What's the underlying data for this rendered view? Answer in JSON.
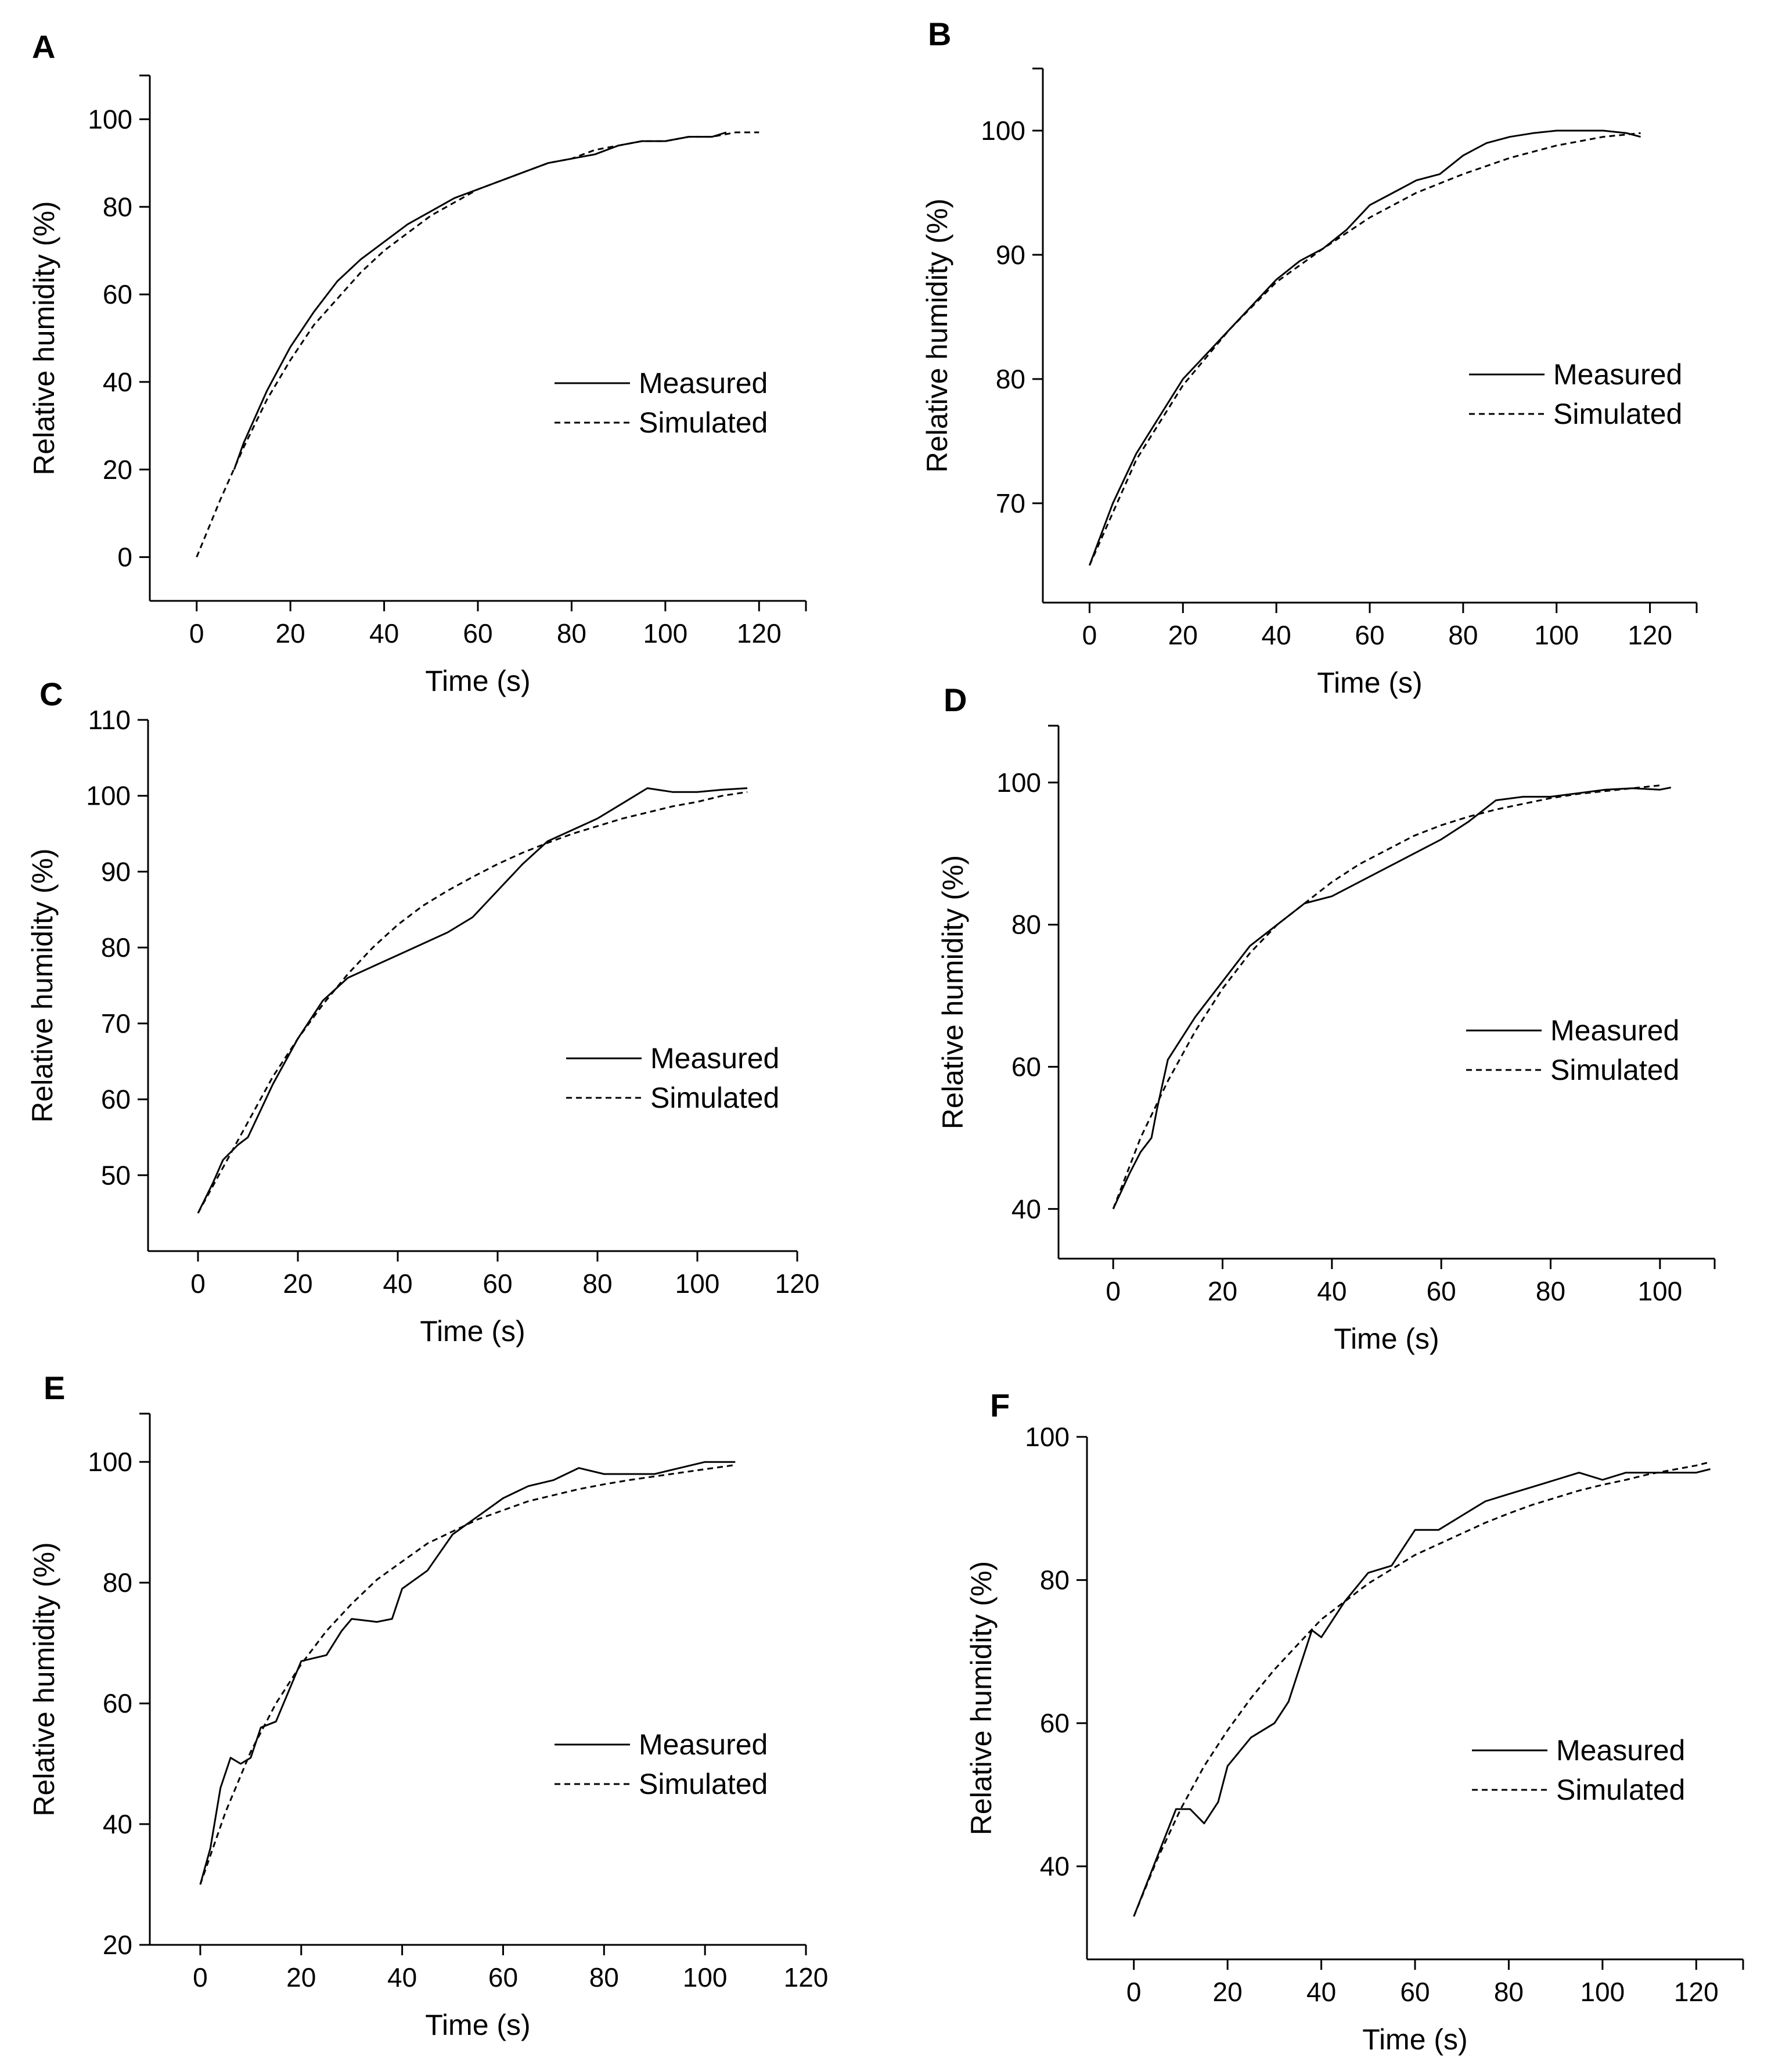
{
  "chart_data": [
    {
      "panel": "A",
      "type": "line",
      "xlabel": "Time (s)",
      "ylabel": "Relative humidity (%)",
      "xlim": [
        -10,
        130
      ],
      "ylim": [
        -10,
        110
      ],
      "xticks": [
        0,
        20,
        40,
        60,
        80,
        100,
        120
      ],
      "yticks": [
        0,
        20,
        40,
        60,
        80,
        100
      ],
      "series": [
        {
          "name": "Measured",
          "style": "solid",
          "x": [
            8,
            10,
            15,
            20,
            25,
            30,
            35,
            40,
            45,
            50,
            55,
            60,
            65,
            70,
            75,
            80,
            85,
            90,
            95,
            100,
            105,
            110,
            113
          ],
          "y": [
            20,
            26,
            38,
            48,
            56,
            63,
            68,
            72,
            76,
            79,
            82,
            84,
            86,
            88,
            90,
            91,
            92,
            94,
            95,
            95,
            96,
            96,
            97
          ]
        },
        {
          "name": "Simulated",
          "style": "dashed",
          "x": [
            0,
            5,
            10,
            15,
            20,
            25,
            30,
            35,
            40,
            45,
            50,
            55,
            60,
            65,
            70,
            75,
            80,
            85,
            90,
            95,
            100,
            105,
            110,
            115,
            120
          ],
          "y": [
            0,
            13,
            25,
            36,
            45,
            53,
            59,
            65,
            70,
            74,
            78,
            81,
            84,
            86,
            88,
            90,
            91,
            93,
            94,
            95,
            95,
            96,
            96,
            97,
            97
          ]
        }
      ]
    },
    {
      "panel": "B",
      "type": "line",
      "xlabel": "Time (s)",
      "ylabel": "Relative humidity (%)",
      "xlim": [
        -10,
        130
      ],
      "ylim": [
        62,
        105
      ],
      "xticks": [
        0,
        20,
        40,
        60,
        80,
        100,
        120
      ],
      "yticks": [
        70,
        80,
        90,
        100
      ],
      "series": [
        {
          "name": "Measured",
          "style": "solid",
          "x": [
            0,
            5,
            10,
            15,
            20,
            25,
            30,
            35,
            40,
            45,
            50,
            55,
            60,
            65,
            70,
            75,
            80,
            85,
            90,
            95,
            100,
            105,
            110,
            115,
            118
          ],
          "y": [
            65,
            70,
            74,
            77,
            80,
            82,
            84,
            86,
            88,
            89.5,
            90.5,
            92,
            94,
            95,
            96,
            96.5,
            98,
            99,
            99.5,
            99.8,
            100,
            100,
            100,
            99.8,
            99.5
          ]
        },
        {
          "name": "Simulated",
          "style": "dashed",
          "x": [
            0,
            10,
            20,
            30,
            40,
            50,
            60,
            70,
            80,
            90,
            100,
            110,
            118
          ],
          "y": [
            65,
            73.5,
            79.5,
            84,
            87.8,
            90.5,
            93,
            95,
            96.5,
            97.8,
            98.8,
            99.5,
            99.8
          ]
        }
      ]
    },
    {
      "panel": "C",
      "type": "line",
      "xlabel": "Time (s)",
      "ylabel": "Relative humidity (%)",
      "xlim": [
        -10,
        120
      ],
      "ylim": [
        40,
        110
      ],
      "xticks": [
        0,
        20,
        40,
        60,
        80,
        100,
        120
      ],
      "yticks": [
        50,
        60,
        70,
        80,
        90,
        100,
        110
      ],
      "series": [
        {
          "name": "Measured",
          "style": "solid",
          "x": [
            0,
            3,
            5,
            8,
            10,
            15,
            20,
            25,
            30,
            35,
            40,
            45,
            50,
            55,
            60,
            65,
            70,
            75,
            80,
            85,
            90,
            95,
            100,
            105,
            110
          ],
          "y": [
            45,
            49,
            52,
            54,
            55,
            62,
            68,
            73,
            76,
            77.5,
            79,
            80.5,
            82,
            84,
            87.5,
            91,
            94,
            95.5,
            97,
            99,
            101,
            100.5,
            100.5,
            100.8,
            101
          ]
        },
        {
          "name": "Simulated",
          "style": "dashed",
          "x": [
            0,
            5,
            10,
            15,
            20,
            25,
            30,
            35,
            40,
            45,
            50,
            55,
            60,
            65,
            70,
            75,
            80,
            85,
            90,
            95,
            100,
            105,
            110
          ],
          "y": [
            45,
            51,
            57,
            63,
            68,
            72.5,
            76.5,
            80,
            83,
            85.5,
            87.5,
            89.3,
            91,
            92.5,
            93.8,
            95,
            96,
            97,
            97.8,
            98.6,
            99.2,
            100,
            100.5
          ]
        }
      ]
    },
    {
      "panel": "D",
      "type": "line",
      "xlabel": "Time (s)",
      "ylabel": "Relative humidity (%)",
      "xlim": [
        -10,
        110
      ],
      "ylim": [
        33,
        108
      ],
      "xticks": [
        0,
        20,
        40,
        60,
        80,
        100
      ],
      "yticks": [
        40,
        60,
        80,
        100
      ],
      "series": [
        {
          "name": "Measured",
          "style": "solid",
          "x": [
            0,
            3,
            5,
            7,
            8,
            10,
            15,
            20,
            25,
            30,
            35,
            40,
            45,
            50,
            55,
            60,
            65,
            70,
            75,
            80,
            85,
            90,
            95,
            100,
            102
          ],
          "y": [
            40,
            45,
            48,
            50,
            54,
            61,
            67,
            72,
            77,
            80,
            83,
            84,
            86,
            88,
            90,
            92,
            94.5,
            97.5,
            98,
            98,
            98.5,
            99,
            99.2,
            99,
            99.3
          ]
        },
        {
          "name": "Simulated",
          "style": "dashed",
          "x": [
            0,
            5,
            10,
            15,
            20,
            25,
            30,
            35,
            40,
            45,
            50,
            55,
            60,
            65,
            70,
            75,
            80,
            85,
            90,
            95,
            100
          ],
          "y": [
            40,
            50,
            58,
            65,
            71,
            76,
            80,
            83,
            86,
            88.5,
            90.5,
            92.5,
            94,
            95.2,
            96.2,
            97,
            97.8,
            98.4,
            98.8,
            99.2,
            99.6
          ]
        }
      ]
    },
    {
      "panel": "E",
      "type": "line",
      "xlabel": "Time (s)",
      "ylabel": "Relative humidity (%)",
      "xlim": [
        -10,
        120
      ],
      "ylim": [
        20,
        108
      ],
      "xticks": [
        0,
        20,
        40,
        60,
        80,
        100,
        120
      ],
      "yticks": [
        20,
        40,
        60,
        80,
        100
      ],
      "series": [
        {
          "name": "Measured",
          "style": "solid",
          "x": [
            0,
            2,
            4,
            6,
            8,
            10,
            12,
            15,
            18,
            20,
            25,
            28,
            30,
            35,
            38,
            40,
            45,
            50,
            55,
            60,
            65,
            70,
            75,
            80,
            85,
            90,
            95,
            100,
            106
          ],
          "y": [
            30,
            36,
            46,
            51,
            50,
            51,
            56,
            57,
            63,
            67,
            68,
            72,
            74,
            73.5,
            74,
            79,
            82,
            88,
            91,
            94,
            96,
            97,
            99,
            98,
            98,
            98,
            99,
            100,
            100
          ]
        },
        {
          "name": "Simulated",
          "style": "dashed",
          "x": [
            0,
            5,
            10,
            15,
            20,
            25,
            30,
            35,
            40,
            45,
            50,
            55,
            60,
            65,
            70,
            75,
            80,
            85,
            90,
            95,
            100,
            106
          ],
          "y": [
            30,
            42,
            52,
            60,
            66.5,
            72,
            76.5,
            80.5,
            83.5,
            86.5,
            88.5,
            90.5,
            92,
            93.5,
            94.5,
            95.5,
            96.3,
            97,
            97.6,
            98.2,
            98.8,
            99.5
          ]
        }
      ]
    },
    {
      "panel": "F",
      "type": "line",
      "xlabel": "Time (s)",
      "ylabel": "Relative humidity (%)",
      "xlim": [
        -10,
        130
      ],
      "ylim": [
        27,
        100
      ],
      "xticks": [
        0,
        20,
        40,
        60,
        80,
        100,
        120
      ],
      "yticks": [
        40,
        60,
        80,
        100
      ],
      "series": [
        {
          "name": "Measured",
          "style": "solid",
          "x": [
            0,
            3,
            6,
            9,
            12,
            15,
            18,
            20,
            25,
            30,
            33,
            35,
            38,
            40,
            45,
            50,
            55,
            60,
            65,
            70,
            75,
            80,
            85,
            90,
            95,
            100,
            105,
            110,
            115,
            120,
            123
          ],
          "y": [
            33,
            38,
            43,
            48,
            48,
            46,
            49,
            54,
            58,
            60,
            63,
            67,
            73,
            72,
            77,
            81,
            82,
            87,
            87,
            89,
            91,
            92,
            93,
            94,
            95,
            94,
            95,
            95,
            95,
            95,
            95.5
          ]
        },
        {
          "name": "Simulated",
          "style": "dashed",
          "x": [
            0,
            5,
            10,
            15,
            20,
            25,
            30,
            35,
            40,
            45,
            50,
            55,
            60,
            65,
            70,
            75,
            80,
            85,
            90,
            95,
            100,
            105,
            110,
            115,
            120,
            123
          ],
          "y": [
            33,
            41,
            48,
            54,
            59,
            63.5,
            67.5,
            71,
            74.5,
            77,
            79.5,
            81.5,
            83.5,
            85,
            86.5,
            88,
            89.3,
            90.5,
            91.5,
            92.5,
            93.3,
            94,
            94.8,
            95.4,
            96,
            96.5
          ]
        }
      ]
    }
  ]
}
